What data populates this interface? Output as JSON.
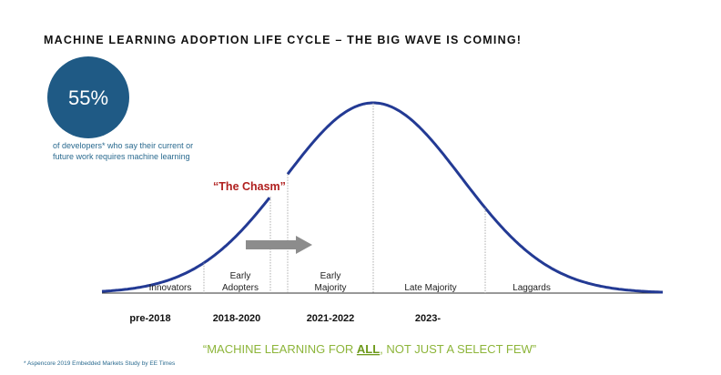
{
  "title": "MACHINE LEARNING ADOPTION LIFE CYCLE – THE BIG WAVE IS COMING!",
  "stat": {
    "value": "55%",
    "caption": [
      "of developers* who say their current or",
      "future work requires machine learning"
    ]
  },
  "chasm_label": "“The Chasm”",
  "segments": [
    {
      "label": [
        "Innovators"
      ],
      "period": "pre-2018"
    },
    {
      "label": [
        "Early",
        "Adopters"
      ],
      "period": "2018-2020"
    },
    {
      "label": [
        "Early",
        "Majority"
      ],
      "period": "2021-2022"
    },
    {
      "label": [
        "Late Majority"
      ],
      "period": "2023-"
    },
    {
      "label": [
        "Laggards"
      ]
    }
  ],
  "tagline": {
    "before": "“MACHINE LEARNING FOR ",
    "emphasis": "ALL",
    "after": ", NOT JUST A SELECT FEW”"
  },
  "footnote": "* Aspencore 2019 Embedded Markets Study by EE Times"
}
